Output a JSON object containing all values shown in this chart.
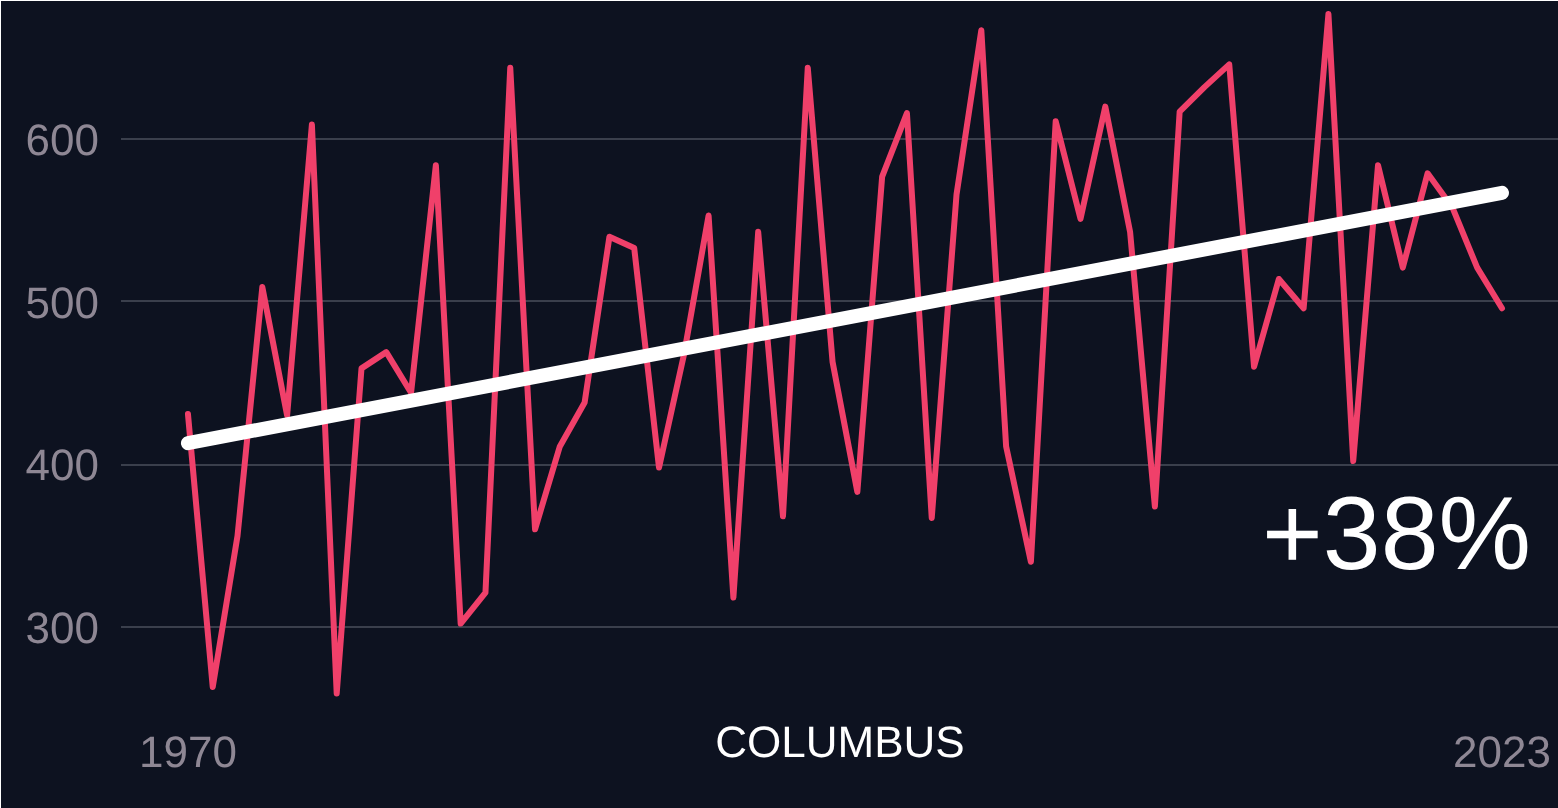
{
  "chart_data": {
    "type": "line",
    "xlabel": "COLUMBUS",
    "annotations": [
      "+38%"
    ],
    "xlim": [
      1967.3,
      2025.3
    ],
    "xticks": [
      1970,
      2023
    ],
    "ylim": [
      247,
      685
    ],
    "yticks": [
      300,
      400,
      500,
      600
    ],
    "grid": "y",
    "marker": "none",
    "line_style": "solid",
    "series": [
      {
        "color": "#f0406a",
        "x": [
          1970,
          1971,
          1972,
          1973,
          1974,
          1975,
          1976,
          1977,
          1978,
          1979,
          1980,
          1981,
          1982,
          1983,
          1984,
          1985,
          1986,
          1987,
          1988,
          1989,
          1990,
          1991,
          1992,
          1993,
          1994,
          1995,
          1996,
          1997,
          1998,
          1999,
          2000,
          2001,
          2002,
          2003,
          2004,
          2005,
          2006,
          2007,
          2008,
          2009,
          2010,
          2011,
          2012,
          2013,
          2014,
          2015,
          2016,
          2017,
          2018,
          2019,
          2020,
          2021,
          2022,
          2023
        ],
        "values": [
          431,
          263,
          356,
          509,
          430,
          609,
          259,
          459,
          469,
          444,
          584,
          302,
          321,
          644,
          360,
          411,
          438,
          540,
          533,
          398,
          467,
          553,
          318,
          543,
          368,
          644,
          463,
          383,
          577,
          616,
          367,
          566,
          667,
          411,
          340,
          611,
          551,
          620,
          543,
          374,
          617,
          632,
          646,
          460,
          514,
          496,
          677,
          402,
          584,
          521,
          579,
          558,
          521,
          496
        ]
      },
      {
        "color": "#ffffff",
        "type": "line",
        "x": [
          1970,
          2023
        ],
        "values": [
          413,
          567
        ]
      }
    ]
  }
}
